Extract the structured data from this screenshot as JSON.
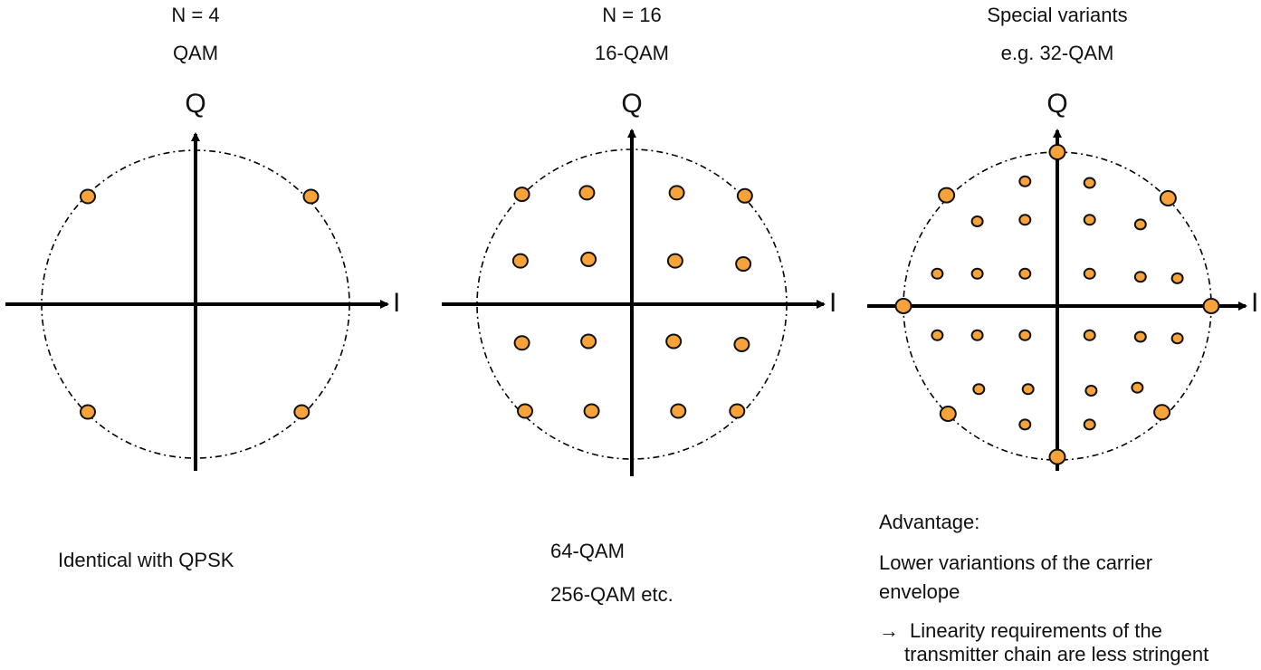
{
  "panels": [
    {
      "title": "N = 4",
      "subtitle": "QAM",
      "q_label": "Q",
      "i_label": "I",
      "note": "Identical with QPSK",
      "points": [
        [
          -0.7,
          0.7
        ],
        [
          0.75,
          0.7
        ],
        [
          -0.7,
          -0.7
        ],
        [
          0.69,
          -0.7
        ]
      ]
    },
    {
      "title": "N = 16",
      "subtitle": "16-QAM",
      "q_label": "Q",
      "i_label": "I",
      "note_lines": [
        "64-QAM",
        "256-QAM etc."
      ],
      "points": [
        [
          -0.71,
          0.71
        ],
        [
          -0.29,
          0.72
        ],
        [
          0.29,
          0.72
        ],
        [
          0.73,
          0.7
        ],
        [
          -0.72,
          0.28
        ],
        [
          -0.28,
          0.29
        ],
        [
          0.28,
          0.28
        ],
        [
          0.72,
          0.26
        ],
        [
          -0.71,
          -0.25
        ],
        [
          -0.28,
          -0.24
        ],
        [
          0.27,
          -0.24
        ],
        [
          0.71,
          -0.26
        ],
        [
          -0.69,
          -0.69
        ],
        [
          -0.26,
          -0.69
        ],
        [
          0.3,
          -0.69
        ],
        [
          0.68,
          -0.69
        ]
      ]
    },
    {
      "title": "Special variants",
      "subtitle": "e.g. 32-QAM",
      "q_label": "Q",
      "i_label": "I",
      "note_heading": "Advantage:",
      "note_body": "Lower variantions of the carrier envelope",
      "note_arrow": "→",
      "note_conclusion": "Linearity requirements of the transmitter chain are less stringent",
      "points_large": [
        [
          0,
          1.0
        ],
        [
          0,
          -0.98
        ],
        [
          -1.0,
          0
        ],
        [
          1.0,
          0
        ],
        [
          -0.72,
          0.72
        ],
        [
          0.72,
          0.7
        ],
        [
          -0.71,
          -0.7
        ],
        [
          0.68,
          -0.69
        ]
      ],
      "points_small": [
        [
          -0.21,
          0.81
        ],
        [
          0.21,
          0.8
        ],
        [
          -0.52,
          0.55
        ],
        [
          -0.21,
          0.56
        ],
        [
          0.21,
          0.56
        ],
        [
          0.54,
          0.53
        ],
        [
          -0.78,
          0.21
        ],
        [
          -0.52,
          0.21
        ],
        [
          -0.21,
          0.21
        ],
        [
          0.21,
          0.21
        ],
        [
          0.54,
          0.19
        ],
        [
          0.78,
          0.18
        ],
        [
          -0.78,
          -0.19
        ],
        [
          -0.52,
          -0.19
        ],
        [
          -0.21,
          -0.19
        ],
        [
          0.21,
          -0.19
        ],
        [
          0.54,
          -0.2
        ],
        [
          0.78,
          -0.21
        ],
        [
          -0.51,
          -0.54
        ],
        [
          -0.19,
          -0.54
        ],
        [
          0.22,
          -0.55
        ],
        [
          0.52,
          -0.53
        ],
        [
          -0.21,
          -0.77
        ],
        [
          0.21,
          -0.77
        ]
      ]
    }
  ],
  "colors": {
    "point_fill": "#F8A33A",
    "point_stroke": "#111111",
    "axis": "#000000",
    "circle": "#000000"
  }
}
